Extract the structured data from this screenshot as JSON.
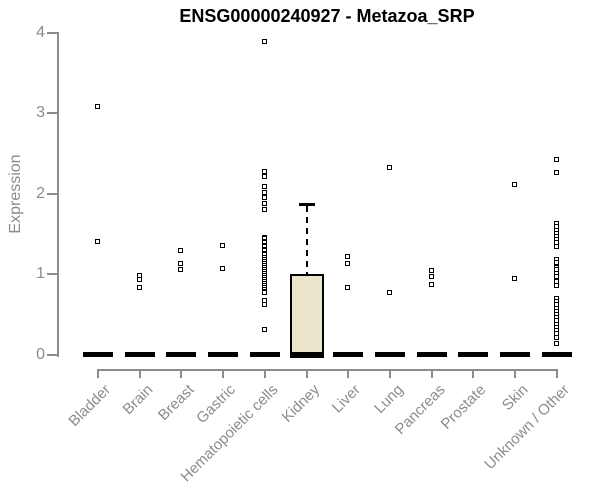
{
  "chart_data": {
    "type": "boxplot",
    "title": "ENSG00000240927 - Metazoa_SRP",
    "ylabel": "Expression",
    "xlabel": "",
    "ylim": [
      0,
      4
    ],
    "yticks": [
      0,
      1,
      2,
      3,
      4
    ],
    "grid": false,
    "legend": null,
    "categories": [
      "Bladder",
      "Brain",
      "Breast",
      "Gastric",
      "Hematopoietic cells",
      "Kidney",
      "Liver",
      "Lung",
      "Pancreas",
      "Prostate",
      "Skin",
      "Unknown / Other"
    ],
    "boxes": [
      {
        "category": "Bladder",
        "median": 0,
        "q1": 0,
        "q3": 0,
        "whisker_low": 0,
        "whisker_high": 0,
        "outliers": [
          3.07,
          1.4
        ]
      },
      {
        "category": "Brain",
        "median": 0,
        "q1": 0,
        "q3": 0,
        "whisker_low": 0,
        "whisker_high": 0,
        "outliers": [
          0.97,
          0.93,
          0.82
        ]
      },
      {
        "category": "Breast",
        "median": 0,
        "q1": 0,
        "q3": 0,
        "whisker_low": 0,
        "whisker_high": 0,
        "outliers": [
          1.28,
          1.13,
          1.05
        ]
      },
      {
        "category": "Gastric",
        "median": 0,
        "q1": 0,
        "q3": 0,
        "whisker_low": 0,
        "whisker_high": 0,
        "outliers": [
          1.35,
          1.06
        ]
      },
      {
        "category": "Hematopoietic cells",
        "median": 0,
        "q1": 0,
        "q3": 0,
        "whisker_low": 0,
        "whisker_high": 0,
        "outliers": [
          3.88,
          2.27,
          2.2,
          2.08,
          2.01,
          1.95,
          1.87,
          1.8,
          1.45,
          1.43,
          1.4,
          1.38,
          1.35,
          1.33,
          1.3,
          1.28,
          1.25,
          1.23,
          1.2,
          1.18,
          1.15,
          1.13,
          1.1,
          1.08,
          1.05,
          1.03,
          1.0,
          0.98,
          0.95,
          0.93,
          0.9,
          0.88,
          0.85,
          0.83,
          0.8,
          0.78,
          0.76,
          0.67,
          0.61,
          0.3
        ]
      },
      {
        "category": "Kidney",
        "median": 0,
        "q1": 0,
        "q3": 1.0,
        "whisker_low": 0,
        "whisker_high": 1.87,
        "outliers": []
      },
      {
        "category": "Liver",
        "median": 0,
        "q1": 0,
        "q3": 0,
        "whisker_low": 0,
        "whisker_high": 0,
        "outliers": [
          1.21,
          1.13,
          0.82
        ]
      },
      {
        "category": "Lung",
        "median": 0,
        "q1": 0,
        "q3": 0,
        "whisker_low": 0,
        "whisker_high": 0,
        "outliers": [
          2.32,
          0.76
        ]
      },
      {
        "category": "Pancreas",
        "median": 0,
        "q1": 0,
        "q3": 0,
        "whisker_low": 0,
        "whisker_high": 0,
        "outliers": [
          1.04,
          0.96,
          0.86
        ]
      },
      {
        "category": "Prostate",
        "median": 0,
        "q1": 0,
        "q3": 0,
        "whisker_low": 0,
        "whisker_high": 0,
        "outliers": []
      },
      {
        "category": "Skin",
        "median": 0,
        "q1": 0,
        "q3": 0,
        "whisker_low": 0,
        "whisker_high": 0,
        "outliers": [
          2.1,
          0.94
        ]
      },
      {
        "category": "Unknown / Other",
        "median": 0,
        "q1": 0,
        "q3": 0,
        "whisker_low": 0,
        "whisker_high": 0,
        "outliers": [
          2.42,
          2.26,
          1.62,
          1.58,
          1.54,
          1.5,
          1.46,
          1.42,
          1.38,
          1.34,
          1.17,
          1.14,
          1.08,
          1.05,
          1.0,
          0.96,
          0.9,
          0.85,
          0.69,
          0.65,
          0.61,
          0.57,
          0.53,
          0.49,
          0.45,
          0.41,
          0.37,
          0.33,
          0.29,
          0.25,
          0.21,
          0.13
        ]
      }
    ],
    "colors": {
      "background": "#ffffff",
      "title": "#000000",
      "axis": "#8c8c8c",
      "tick_label": "#8c8c8c",
      "box_fill": "#ebe5cc",
      "box_border": "#000000",
      "median": "#000000",
      "whisker": "#000000",
      "outlier": "#000000"
    }
  }
}
